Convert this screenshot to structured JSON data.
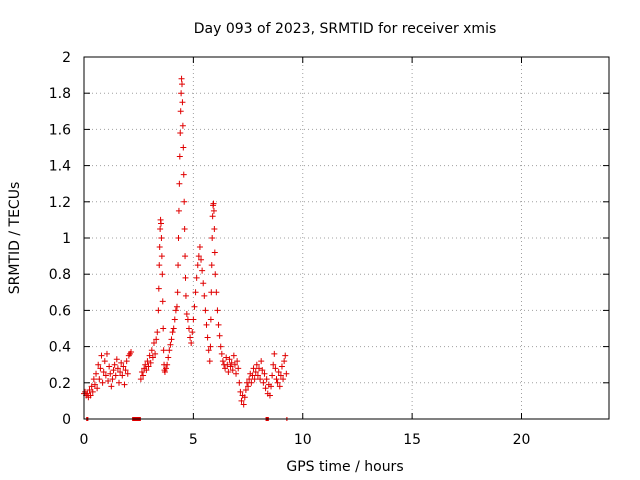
{
  "chart_data": {
    "type": "scatter",
    "title": "Day 093 of 2023, SRMTID for receiver xmis",
    "xlabel": "GPS time / hours",
    "ylabel": "SRMTID / TECUs",
    "xlim": [
      0,
      24
    ],
    "ylim": [
      0,
      2
    ],
    "x_ticks": [
      "0",
      "5",
      "10",
      "15",
      "20"
    ],
    "y_ticks": [
      "0",
      "0.2",
      "0.4",
      "0.6",
      "0.8",
      "1",
      "1.2",
      "1.4",
      "1.6",
      "1.8",
      "2"
    ],
    "grid": true,
    "marker": "+",
    "series": [
      {
        "name": "SRMTID",
        "color": "#e00000",
        "points": [
          [
            0.0,
            0.14
          ],
          [
            0.05,
            0.15
          ],
          [
            0.1,
            0.13
          ],
          [
            0.15,
            0.14
          ],
          [
            0.2,
            0.12
          ],
          [
            0.25,
            0.16
          ],
          [
            0.3,
            0.13
          ],
          [
            0.35,
            0.18
          ],
          [
            0.4,
            0.15
          ],
          [
            0.45,
            0.22
          ],
          [
            0.5,
            0.19
          ],
          [
            0.55,
            0.25
          ],
          [
            0.6,
            0.17
          ],
          [
            0.65,
            0.3
          ],
          [
            0.7,
            0.22
          ],
          [
            0.75,
            0.28
          ],
          [
            0.8,
            0.35
          ],
          [
            0.85,
            0.2
          ],
          [
            0.9,
            0.26
          ],
          [
            0.95,
            0.32
          ],
          [
            1.0,
            0.24
          ],
          [
            1.05,
            0.36
          ],
          [
            1.1,
            0.21
          ],
          [
            1.15,
            0.29
          ],
          [
            1.2,
            0.25
          ],
          [
            1.25,
            0.18
          ],
          [
            1.3,
            0.22
          ],
          [
            1.35,
            0.27
          ],
          [
            1.4,
            0.3
          ],
          [
            1.45,
            0.24
          ],
          [
            1.5,
            0.33
          ],
          [
            1.55,
            0.28
          ],
          [
            1.6,
            0.2
          ],
          [
            1.65,
            0.26
          ],
          [
            1.7,
            0.31
          ],
          [
            1.75,
            0.24
          ],
          [
            1.8,
            0.29
          ],
          [
            1.85,
            0.19
          ],
          [
            1.9,
            0.27
          ],
          [
            1.95,
            0.32
          ],
          [
            2.0,
            0.25
          ],
          [
            2.05,
            0.35
          ],
          [
            2.1,
            0.36
          ],
          [
            2.15,
            0.37
          ],
          [
            2.6,
            0.22
          ],
          [
            2.65,
            0.26
          ],
          [
            2.7,
            0.24
          ],
          [
            2.75,
            0.28
          ],
          [
            2.8,
            0.3
          ],
          [
            2.85,
            0.27
          ],
          [
            2.9,
            0.32
          ],
          [
            2.95,
            0.29
          ],
          [
            3.0,
            0.35
          ],
          [
            3.05,
            0.31
          ],
          [
            3.1,
            0.38
          ],
          [
            3.15,
            0.34
          ],
          [
            3.2,
            0.42
          ],
          [
            3.25,
            0.36
          ],
          [
            3.3,
            0.44
          ],
          [
            3.35,
            0.48
          ],
          [
            3.4,
            0.6
          ],
          [
            3.42,
            0.72
          ],
          [
            3.44,
            0.85
          ],
          [
            3.46,
            0.95
          ],
          [
            3.48,
            1.05
          ],
          [
            3.5,
            1.1
          ],
          [
            3.52,
            1.08
          ],
          [
            3.54,
            1.0
          ],
          [
            3.56,
            0.9
          ],
          [
            3.58,
            0.8
          ],
          [
            3.6,
            0.65
          ],
          [
            3.62,
            0.5
          ],
          [
            3.64,
            0.38
          ],
          [
            3.66,
            0.3
          ],
          [
            3.68,
            0.27
          ],
          [
            3.7,
            0.26
          ],
          [
            3.75,
            0.28
          ],
          [
            3.8,
            0.3
          ],
          [
            3.85,
            0.34
          ],
          [
            3.9,
            0.38
          ],
          [
            3.95,
            0.41
          ],
          [
            4.0,
            0.44
          ],
          [
            4.05,
            0.48
          ],
          [
            4.1,
            0.5
          ],
          [
            4.15,
            0.55
          ],
          [
            4.2,
            0.6
          ],
          [
            4.25,
            0.62
          ],
          [
            4.28,
            0.7
          ],
          [
            4.3,
            0.85
          ],
          [
            4.32,
            1.0
          ],
          [
            4.34,
            1.15
          ],
          [
            4.36,
            1.3
          ],
          [
            4.38,
            1.45
          ],
          [
            4.4,
            1.58
          ],
          [
            4.42,
            1.7
          ],
          [
            4.44,
            1.8
          ],
          [
            4.46,
            1.88
          ],
          [
            4.48,
            1.85
          ],
          [
            4.5,
            1.75
          ],
          [
            4.52,
            1.62
          ],
          [
            4.54,
            1.5
          ],
          [
            4.56,
            1.35
          ],
          [
            4.58,
            1.2
          ],
          [
            4.6,
            1.05
          ],
          [
            4.62,
            0.9
          ],
          [
            4.64,
            0.78
          ],
          [
            4.66,
            0.68
          ],
          [
            4.7,
            0.58
          ],
          [
            4.75,
            0.55
          ],
          [
            4.8,
            0.5
          ],
          [
            4.85,
            0.45
          ],
          [
            4.9,
            0.42
          ],
          [
            4.95,
            0.48
          ],
          [
            5.0,
            0.55
          ],
          [
            5.05,
            0.62
          ],
          [
            5.1,
            0.7
          ],
          [
            5.15,
            0.78
          ],
          [
            5.2,
            0.85
          ],
          [
            5.25,
            0.9
          ],
          [
            5.3,
            0.95
          ],
          [
            5.35,
            0.88
          ],
          [
            5.4,
            0.82
          ],
          [
            5.45,
            0.75
          ],
          [
            5.5,
            0.68
          ],
          [
            5.55,
            0.6
          ],
          [
            5.6,
            0.52
          ],
          [
            5.65,
            0.45
          ],
          [
            5.7,
            0.38
          ],
          [
            5.75,
            0.32
          ],
          [
            5.78,
            0.4
          ],
          [
            5.8,
            0.55
          ],
          [
            5.82,
            0.7
          ],
          [
            5.84,
            0.85
          ],
          [
            5.86,
            1.0
          ],
          [
            5.88,
            1.12
          ],
          [
            5.9,
            1.18
          ],
          [
            5.92,
            1.19
          ],
          [
            5.94,
            1.15
          ],
          [
            5.96,
            1.05
          ],
          [
            5.98,
            0.92
          ],
          [
            6.0,
            0.8
          ],
          [
            6.05,
            0.7
          ],
          [
            6.1,
            0.6
          ],
          [
            6.15,
            0.52
          ],
          [
            6.2,
            0.46
          ],
          [
            6.25,
            0.4
          ],
          [
            6.3,
            0.36
          ],
          [
            6.35,
            0.32
          ],
          [
            6.4,
            0.3
          ],
          [
            6.45,
            0.28
          ],
          [
            6.5,
            0.34
          ],
          [
            6.55,
            0.3
          ],
          [
            6.6,
            0.26
          ],
          [
            6.65,
            0.33
          ],
          [
            6.7,
            0.29
          ],
          [
            6.75,
            0.31
          ],
          [
            6.8,
            0.27
          ],
          [
            6.85,
            0.35
          ],
          [
            6.9,
            0.3
          ],
          [
            6.95,
            0.25
          ],
          [
            7.0,
            0.32
          ],
          [
            7.05,
            0.28
          ],
          [
            7.1,
            0.2
          ],
          [
            7.15,
            0.15
          ],
          [
            7.2,
            0.1
          ],
          [
            7.25,
            0.13
          ],
          [
            7.3,
            0.08
          ],
          [
            7.35,
            0.12
          ],
          [
            7.4,
            0.16
          ],
          [
            7.45,
            0.2
          ],
          [
            7.5,
            0.18
          ],
          [
            7.55,
            0.22
          ],
          [
            7.6,
            0.25
          ],
          [
            7.65,
            0.2
          ],
          [
            7.7,
            0.24
          ],
          [
            7.75,
            0.28
          ],
          [
            7.8,
            0.22
          ],
          [
            7.85,
            0.26
          ],
          [
            7.9,
            0.3
          ],
          [
            7.95,
            0.24
          ],
          [
            8.0,
            0.28
          ],
          [
            8.05,
            0.22
          ],
          [
            8.1,
            0.32
          ],
          [
            8.15,
            0.27
          ],
          [
            8.2,
            0.2
          ],
          [
            8.25,
            0.25
          ],
          [
            8.3,
            0.17
          ],
          [
            8.35,
            0.22
          ],
          [
            8.4,
            0.14
          ],
          [
            8.45,
            0.19
          ],
          [
            8.5,
            0.13
          ],
          [
            8.55,
            0.18
          ],
          [
            8.6,
            0.24
          ],
          [
            8.65,
            0.3
          ],
          [
            8.7,
            0.36
          ],
          [
            8.75,
            0.28
          ],
          [
            8.8,
            0.22
          ],
          [
            8.85,
            0.2
          ],
          [
            8.9,
            0.26
          ],
          [
            8.95,
            0.18
          ],
          [
            9.0,
            0.24
          ],
          [
            9.05,
            0.29
          ],
          [
            9.1,
            0.22
          ],
          [
            9.15,
            0.32
          ],
          [
            9.2,
            0.35
          ],
          [
            9.25,
            0.25
          ]
        ]
      }
    ],
    "zero_segments": [
      [
        0.1,
        0.2
      ],
      [
        2.2,
        2.6
      ],
      [
        8.3,
        8.45
      ],
      [
        9.25,
        9.3
      ]
    ]
  }
}
